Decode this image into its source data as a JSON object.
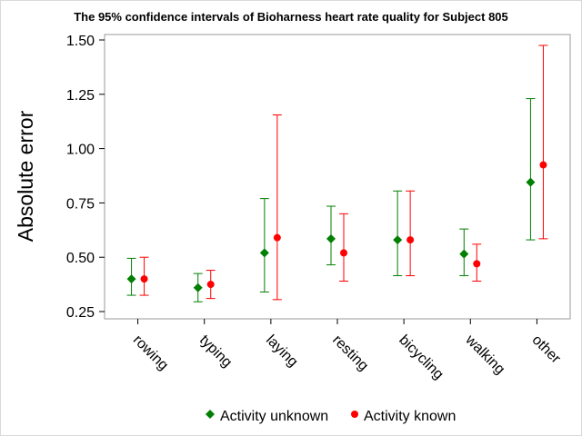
{
  "chart_data": {
    "type": "errorbar",
    "title": "The 95% confidence intervals of Bioharness heart rate quality for Subject 805",
    "ylabel": "Absolute error",
    "xlabel": "",
    "ylim": [
      0.22,
      1.55
    ],
    "yticks": [
      "0.25",
      "0.50",
      "0.75",
      "1.00",
      "1.25",
      "1.50"
    ],
    "categories": [
      "rowing",
      "typing",
      "laying",
      "resting",
      "bicycling",
      "walking",
      "other"
    ],
    "series": [
      {
        "name": "Activity unknown",
        "color": "#007f00",
        "marker": "diamond",
        "mean": [
          0.4,
          0.36,
          0.52,
          0.585,
          0.58,
          0.515,
          0.845
        ],
        "lower": [
          0.325,
          0.295,
          0.34,
          0.465,
          0.415,
          0.415,
          0.58
        ],
        "upper": [
          0.495,
          0.425,
          0.77,
          0.735,
          0.805,
          0.63,
          1.23
        ]
      },
      {
        "name": "Activity known",
        "color": "#ff0000",
        "marker": "circle",
        "mean": [
          0.4,
          0.375,
          0.59,
          0.52,
          0.58,
          0.47,
          0.925
        ],
        "lower": [
          0.325,
          0.31,
          0.305,
          0.39,
          0.415,
          0.39,
          0.585
        ],
        "upper": [
          0.5,
          0.44,
          1.155,
          0.7,
          0.805,
          0.56,
          1.475
        ]
      }
    ],
    "legend_position": "bottom"
  }
}
